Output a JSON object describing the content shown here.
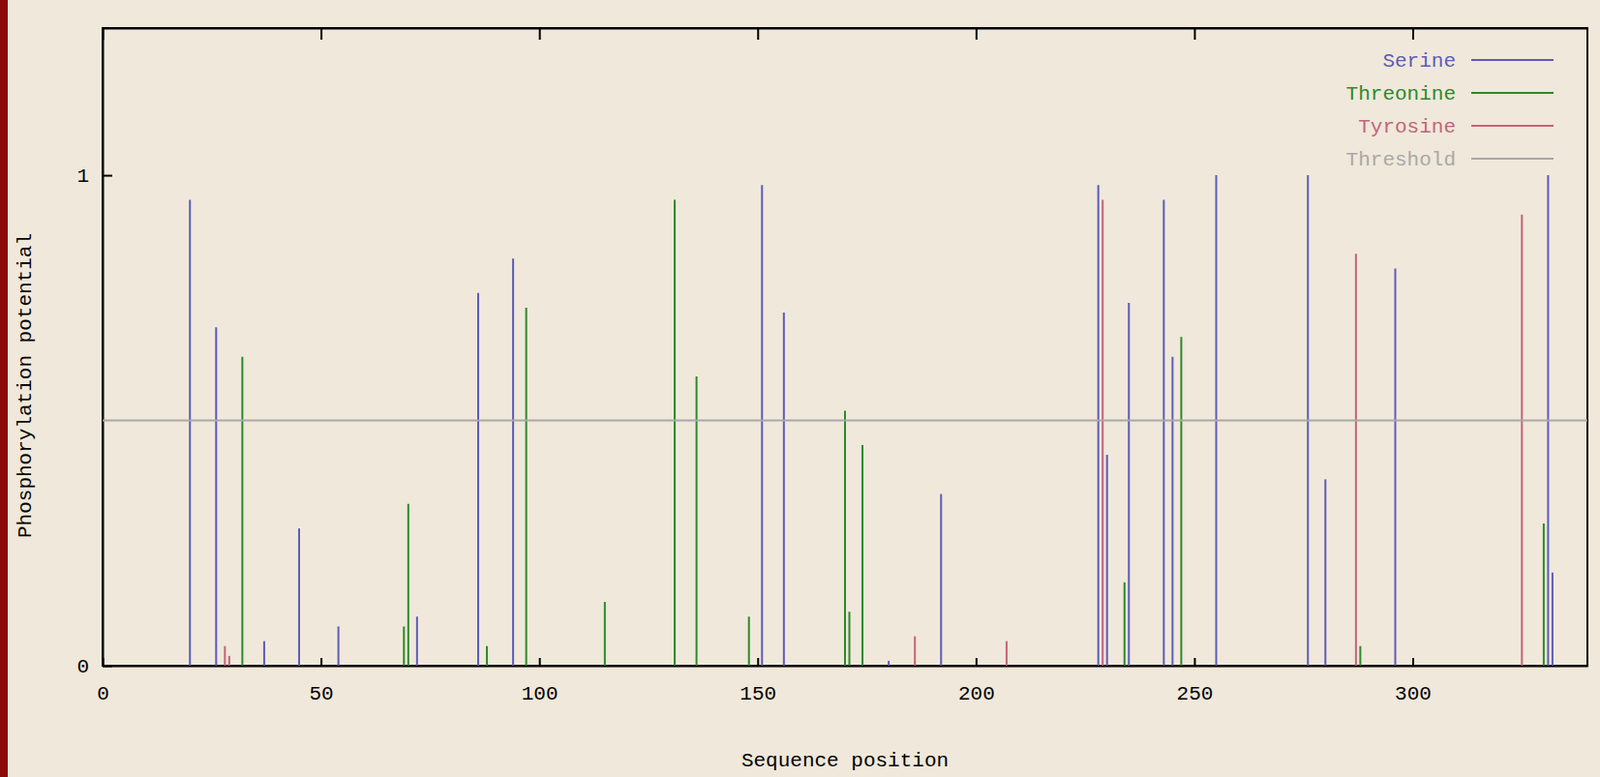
{
  "chart_data": {
    "type": "stem",
    "x_label": "Sequence position",
    "y_label": "Phosphorylation potential",
    "xlim": [
      0,
      340
    ],
    "xticks": [
      0,
      50,
      100,
      150,
      200,
      250,
      300
    ],
    "ylim": [
      0,
      1.3
    ],
    "yticks": [
      0,
      1
    ],
    "legend": "top-right",
    "series": [
      {
        "name": "Serine",
        "color": "#5c5cb8",
        "type": "stem",
        "x": [
          20,
          26,
          37,
          45,
          54,
          72,
          86,
          94,
          151,
          156,
          180,
          192,
          228,
          230,
          235,
          243,
          245,
          255,
          276,
          280,
          296,
          331,
          332
        ],
        "values": [
          0.95,
          0.69,
          0.05,
          0.28,
          0.08,
          0.1,
          0.76,
          0.83,
          0.98,
          0.72,
          0.01,
          0.35,
          0.98,
          0.43,
          0.74,
          0.95,
          0.63,
          1.0,
          1.0,
          0.38,
          0.81,
          1.0,
          0.19
        ]
      },
      {
        "name": "Threonine",
        "color": "#2a8a2a",
        "type": "stem",
        "x": [
          32,
          69,
          70,
          88,
          97,
          115,
          131,
          136,
          148,
          170,
          171,
          174,
          234,
          247,
          288,
          330
        ],
        "values": [
          0.63,
          0.08,
          0.33,
          0.04,
          0.73,
          0.13,
          0.95,
          0.59,
          0.1,
          0.52,
          0.11,
          0.45,
          0.17,
          0.67,
          0.04,
          0.29
        ]
      },
      {
        "name": "Tyrosine",
        "color": "#c2647a",
        "type": "stem",
        "x": [
          28,
          29,
          186,
          207,
          229,
          287,
          325
        ],
        "values": [
          0.04,
          0.02,
          0.06,
          0.05,
          0.95,
          0.84,
          0.92
        ]
      },
      {
        "name": "Threshold",
        "color": "#a8a8a8",
        "type": "line",
        "x": [
          0,
          340
        ],
        "values": [
          0.5,
          0.5
        ]
      }
    ]
  }
}
